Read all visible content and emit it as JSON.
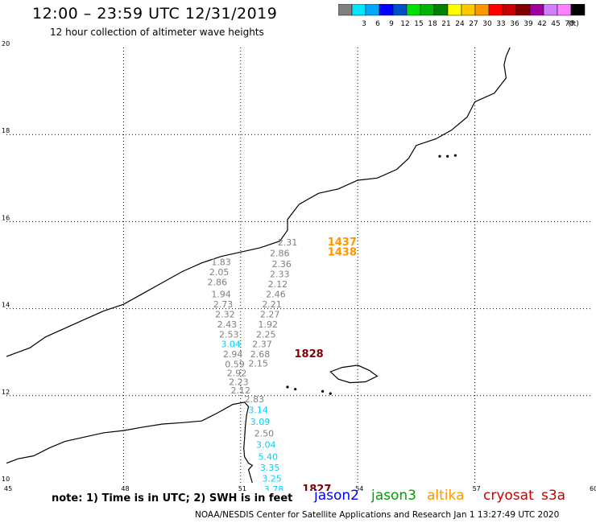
{
  "header": {
    "title": "12:00 – 23:59 UTC 12/31/2019",
    "subtitle": "12 hour collection of altimeter wave heights"
  },
  "colorbar": {
    "unit": "(ft)",
    "swatches": [
      {
        "label": "",
        "color": "#808080"
      },
      {
        "label": "3",
        "color": "#00e5ff"
      },
      {
        "label": "6",
        "color": "#00a8ff"
      },
      {
        "label": "9",
        "color": "#0000ff"
      },
      {
        "label": "12",
        "color": "#0050c8"
      },
      {
        "label": "15",
        "color": "#00e000"
      },
      {
        "label": "18",
        "color": "#00b400"
      },
      {
        "label": "21",
        "color": "#008000"
      },
      {
        "label": "24",
        "color": "#ffff00"
      },
      {
        "label": "27",
        "color": "#ffc800"
      },
      {
        "label": "30",
        "color": "#ff9600"
      },
      {
        "label": "33",
        "color": "#ff0000"
      },
      {
        "label": "36",
        "color": "#c80000"
      },
      {
        "label": "39",
        "color": "#800000"
      },
      {
        "label": "42",
        "color": "#a000a0"
      },
      {
        "label": "45",
        "color": "#d080ff"
      },
      {
        "label": "70",
        "color": "#ff80ff"
      },
      {
        "label": "",
        "color": "#000000"
      }
    ]
  },
  "map": {
    "lon_range": [
      45,
      60
    ],
    "lat_range": [
      10,
      20
    ],
    "lon_ticks": [
      45,
      48,
      51,
      54,
      57,
      60
    ],
    "lat_ticks": [
      10,
      12,
      14,
      16,
      18,
      20
    ],
    "coast_line": [
      [
        45.0,
        10.45
      ],
      [
        45.3,
        10.55
      ],
      [
        45.7,
        10.62
      ],
      [
        46.1,
        10.8
      ],
      [
        46.5,
        10.95
      ],
      [
        47.0,
        11.05
      ],
      [
        47.5,
        11.15
      ],
      [
        48.0,
        11.2
      ],
      [
        48.5,
        11.28
      ],
      [
        49.0,
        11.35
      ],
      [
        49.5,
        11.38
      ],
      [
        50.0,
        11.42
      ],
      [
        50.4,
        11.6
      ],
      [
        50.8,
        11.8
      ],
      [
        51.1,
        11.85
      ],
      [
        51.2,
        11.75
      ],
      [
        51.15,
        11.55
      ],
      [
        51.12,
        11.3
      ],
      [
        51.1,
        11.0
      ],
      [
        51.08,
        10.8
      ],
      [
        51.1,
        10.6
      ],
      [
        51.2,
        10.45
      ],
      [
        51.3,
        10.4
      ],
      [
        51.2,
        10.3
      ],
      [
        51.25,
        10.15
      ],
      [
        51.3,
        10.0
      ]
    ],
    "arabian_coast": [
      [
        45.0,
        12.9
      ],
      [
        45.3,
        13.0
      ],
      [
        45.6,
        13.1
      ],
      [
        46.0,
        13.35
      ],
      [
        46.5,
        13.55
      ],
      [
        47.0,
        13.75
      ],
      [
        47.5,
        13.95
      ],
      [
        48.0,
        14.1
      ],
      [
        48.5,
        14.35
      ],
      [
        49.0,
        14.6
      ],
      [
        49.5,
        14.85
      ],
      [
        50.0,
        15.05
      ],
      [
        50.5,
        15.2
      ],
      [
        51.0,
        15.3
      ],
      [
        51.5,
        15.4
      ],
      [
        52.0,
        15.55
      ],
      [
        52.2,
        15.8
      ],
      [
        52.2,
        16.05
      ],
      [
        52.5,
        16.4
      ],
      [
        53.0,
        16.65
      ],
      [
        53.5,
        16.75
      ],
      [
        54.0,
        16.95
      ],
      [
        54.5,
        17.0
      ],
      [
        55.0,
        17.2
      ],
      [
        55.3,
        17.45
      ],
      [
        55.5,
        17.75
      ],
      [
        56.0,
        17.9
      ],
      [
        56.4,
        18.1
      ],
      [
        56.8,
        18.4
      ],
      [
        57.0,
        18.75
      ],
      [
        57.5,
        18.95
      ],
      [
        57.8,
        19.3
      ],
      [
        57.75,
        19.6
      ],
      [
        57.8,
        19.8
      ],
      [
        57.9,
        20.0
      ]
    ],
    "socotra": [
      [
        53.3,
        12.55
      ],
      [
        53.6,
        12.65
      ],
      [
        54.0,
        12.7
      ],
      [
        54.3,
        12.58
      ],
      [
        54.5,
        12.45
      ],
      [
        54.2,
        12.32
      ],
      [
        53.8,
        12.3
      ],
      [
        53.5,
        12.38
      ],
      [
        53.3,
        12.55
      ]
    ],
    "islets": [
      [
        52.2,
        12.2
      ],
      [
        52.4,
        12.15
      ],
      [
        53.1,
        12.1
      ],
      [
        53.3,
        12.05
      ],
      [
        56.1,
        17.5
      ],
      [
        56.3,
        17.5
      ],
      [
        56.5,
        17.52
      ]
    ]
  },
  "observations": [
    {
      "value": "2.31",
      "lon": 52.2,
      "lat": 15.45,
      "color": "#808080"
    },
    {
      "value": "2.86",
      "lon": 52.0,
      "lat": 15.2,
      "color": "#808080"
    },
    {
      "value": "2.36",
      "lon": 52.05,
      "lat": 14.95,
      "color": "#808080"
    },
    {
      "value": "2.33",
      "lon": 52.0,
      "lat": 14.72,
      "color": "#808080"
    },
    {
      "value": "2.12",
      "lon": 51.95,
      "lat": 14.49,
      "color": "#808080"
    },
    {
      "value": "2.46",
      "lon": 51.9,
      "lat": 14.26,
      "color": "#808080"
    },
    {
      "value": "2.21",
      "lon": 51.8,
      "lat": 14.03,
      "color": "#808080"
    },
    {
      "value": "2.27",
      "lon": 51.75,
      "lat": 13.8,
      "color": "#808080"
    },
    {
      "value": "1.92",
      "lon": 51.7,
      "lat": 13.57,
      "color": "#808080"
    },
    {
      "value": "2.25",
      "lon": 51.65,
      "lat": 13.34,
      "color": "#808080"
    },
    {
      "value": "2.37",
      "lon": 51.55,
      "lat": 13.11,
      "color": "#808080"
    },
    {
      "value": "2.68",
      "lon": 51.5,
      "lat": 12.88,
      "color": "#808080"
    },
    {
      "value": "2.15",
      "lon": 51.45,
      "lat": 12.67,
      "color": "#808080"
    },
    {
      "value": "2.83",
      "lon": 51.35,
      "lat": 11.85,
      "color": "#808080"
    },
    {
      "value": "1.83",
      "lon": 50.5,
      "lat": 15.0,
      "color": "#808080"
    },
    {
      "value": "2.05",
      "lon": 50.45,
      "lat": 14.77,
      "color": "#808080"
    },
    {
      "value": "2.86",
      "lon": 50.4,
      "lat": 14.54,
      "color": "#808080"
    },
    {
      "value": "1.94",
      "lon": 50.5,
      "lat": 14.26,
      "color": "#808080"
    },
    {
      "value": "2.73",
      "lon": 50.55,
      "lat": 14.03,
      "color": "#808080"
    },
    {
      "value": "2.32",
      "lon": 50.6,
      "lat": 13.8,
      "color": "#808080"
    },
    {
      "value": "2.43",
      "lon": 50.65,
      "lat": 13.57,
      "color": "#808080"
    },
    {
      "value": "2.53",
      "lon": 50.7,
      "lat": 13.34,
      "color": "#808080"
    },
    {
      "value": "3.04",
      "lon": 50.75,
      "lat": 13.11,
      "color": "#00d0ff"
    },
    {
      "value": "2.94",
      "lon": 50.8,
      "lat": 12.88,
      "color": "#808080"
    },
    {
      "value": "0.59",
      "lon": 50.85,
      "lat": 12.65,
      "color": "#808080"
    },
    {
      "value": "2.92",
      "lon": 50.9,
      "lat": 12.45,
      "color": "#808080"
    },
    {
      "value": "2.23",
      "lon": 50.95,
      "lat": 12.25,
      "color": "#808080"
    },
    {
      "value": "2.12",
      "lon": 51.0,
      "lat": 12.05,
      "color": "#808080"
    },
    {
      "value": "3.14",
      "lon": 51.45,
      "lat": 11.6,
      "color": "#00d0ff"
    },
    {
      "value": "3.09",
      "lon": 51.5,
      "lat": 11.33,
      "color": "#00d0ff"
    },
    {
      "value": "2.50",
      "lon": 51.6,
      "lat": 11.06,
      "color": "#808080"
    },
    {
      "value": "3.04",
      "lon": 51.65,
      "lat": 10.8,
      "color": "#00d0ff"
    },
    {
      "value": "5.40",
      "lon": 51.7,
      "lat": 10.53,
      "color": "#00d0ff"
    },
    {
      "value": "3.35",
      "lon": 51.75,
      "lat": 10.28,
      "color": "#00d0ff"
    },
    {
      "value": "3.25",
      "lon": 51.8,
      "lat": 10.03,
      "color": "#00d0ff"
    },
    {
      "value": "3.78",
      "lon": 51.85,
      "lat": 9.78,
      "color": "#00d0ff"
    }
  ],
  "time_labels": [
    {
      "value": "1437",
      "lon": 53.6,
      "lat": 15.45,
      "color": "#ff9600"
    },
    {
      "value": "1438",
      "lon": 53.6,
      "lat": 15.22,
      "color": "#ff9600"
    },
    {
      "value": "1828",
      "lon": 52.75,
      "lat": 12.88,
      "color": "#800000"
    },
    {
      "value": "1827",
      "lon": 52.95,
      "lat": 9.78,
      "color": "#800000"
    }
  ],
  "footer": {
    "note": "note:  1) Time is in UTC;  2) SWH is in feet",
    "satellites": [
      {
        "name": "jason2",
        "color": "#0000ff"
      },
      {
        "name": "jason3",
        "color": "#00a000"
      },
      {
        "name": "altika",
        "color": "#ff9600"
      },
      {
        "name": "cryosat",
        "color": "#c80000"
      },
      {
        "name": "s3a",
        "color": "#c80000"
      }
    ],
    "credit": "NOAA/NESDIS Center for Satellite Applications and Research    Jan  1 13:27:49 UTC 2020"
  }
}
